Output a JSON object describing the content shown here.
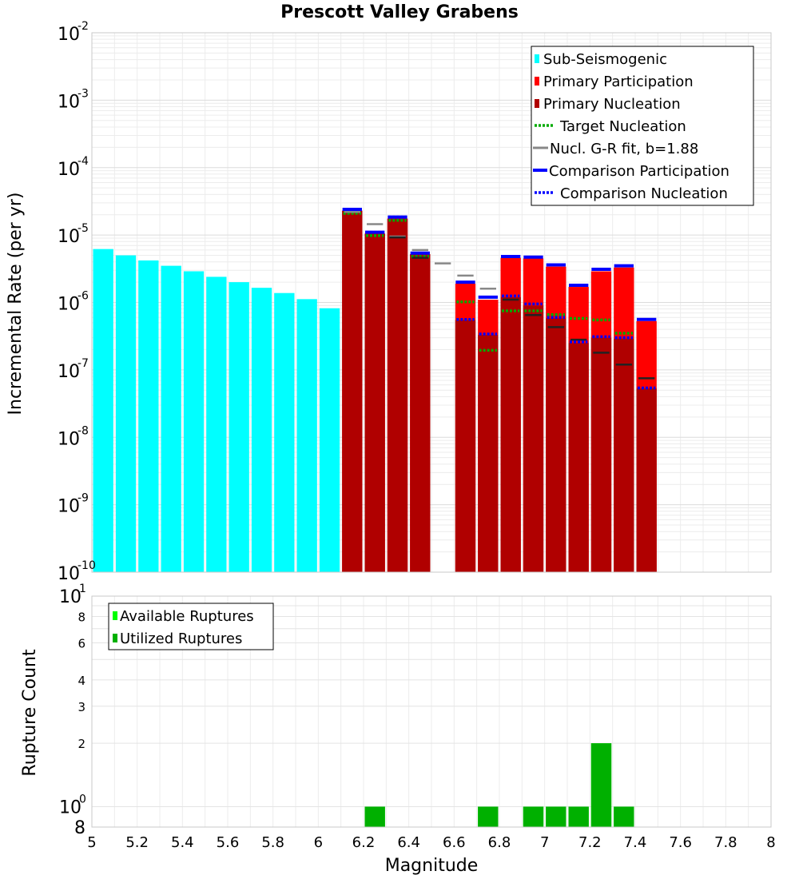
{
  "chart_data": [
    {
      "type": "bar",
      "title": "Prescott Valley Grabens",
      "xlabel": "Magnitude",
      "ylabel": "Incremental Rate (per yr)",
      "yscale": "log",
      "xlim": [
        5,
        8
      ],
      "ylim": [
        1e-10,
        0.01
      ],
      "bin_width": 0.1,
      "y_tick_bases": [
        "10",
        "10",
        "10",
        "10",
        "10",
        "10",
        "10",
        "10",
        "10"
      ],
      "y_tick_exponents": [
        "-2",
        "-3",
        "-4",
        "-5",
        "-6",
        "-7",
        "-8",
        "-9",
        "-10"
      ],
      "series": [
        {
          "name": "Sub-Seismogenic",
          "style": "bar",
          "color": "#00ffff",
          "x": [
            5.05,
            5.15,
            5.25,
            5.35,
            5.45,
            5.55,
            5.65,
            5.75,
            5.85,
            5.95,
            6.05
          ],
          "values": [
            6.2e-06,
            5e-06,
            4.2e-06,
            3.5e-06,
            2.9e-06,
            2.4e-06,
            2e-06,
            1.65e-06,
            1.38e-06,
            1.12e-06,
            8.2e-07
          ]
        },
        {
          "name": "Primary Participation",
          "style": "bar",
          "color": "#ff0000",
          "x": [
            6.15,
            6.25,
            6.35,
            6.45,
            6.65,
            6.75,
            6.85,
            6.95,
            7.05,
            7.15,
            7.25,
            7.35,
            7.45
          ],
          "values": [
            2.3e-05,
            1.05e-05,
            1.75e-05,
            5.2e-06,
            1.9e-06,
            1.1e-06,
            4.6e-06,
            4.5e-06,
            3.4e-06,
            1.7e-06,
            2.9e-06,
            3.3e-06,
            5.3e-07
          ]
        },
        {
          "name": "Primary Nucleation",
          "style": "bar",
          "color": "#b00000",
          "x": [
            6.15,
            6.25,
            6.35,
            6.45,
            6.65,
            6.75,
            6.85,
            6.95,
            7.05,
            7.15,
            7.25,
            7.35,
            7.45
          ],
          "values": [
            2.3e-05,
            1.05e-05,
            1.75e-05,
            5.2e-06,
            5.5e-07,
            3.3e-07,
            1.2e-06,
            9e-07,
            5.8e-07,
            2.5e-07,
            3e-07,
            2.9e-07,
            5.3e-08
          ]
        },
        {
          "name": "Target Nucleation",
          "style": "dotted",
          "color": "#00aa00",
          "x": [
            6.15,
            6.25,
            6.35,
            6.45,
            6.65,
            6.75,
            6.85,
            6.95,
            7.05,
            7.15,
            7.25,
            7.35
          ],
          "values": [
            2.1e-05,
            9.8e-06,
            1.65e-05,
            4.8e-06,
            1.02e-06,
            1.95e-07,
            7.5e-07,
            7.5e-07,
            6.6e-07,
            5.8e-07,
            5.5e-07,
            3.5e-07
          ]
        },
        {
          "name": "Nucl. G-R fit, b=1.88",
          "style": "dash",
          "color": "#888888",
          "x": [
            6.15,
            6.25,
            6.35,
            6.45,
            6.55,
            6.65,
            6.75
          ],
          "values": [
            2.2e-05,
            1.45e-05,
            9.5e-06,
            6e-06,
            3.8e-06,
            2.5e-06,
            1.6e-06
          ]
        },
        {
          "name": "Nucl. G-R fit (tail)",
          "style": "dash",
          "color": "#222222",
          "in_legend": false,
          "x": [
            6.35,
            6.45,
            6.85,
            6.95,
            7.05,
            7.15,
            7.25,
            7.35,
            7.45
          ],
          "values": [
            9.2e-06,
            4.6e-06,
            1.1e-06,
            6.5e-07,
            4.3e-07,
            2.8e-07,
            1.8e-07,
            1.2e-07,
            7.5e-08
          ]
        },
        {
          "name": "Comparison Participation",
          "style": "solid",
          "color": "#0000ff",
          "x": [
            6.15,
            6.25,
            6.35,
            6.45,
            6.65,
            6.75,
            6.85,
            6.95,
            7.05,
            7.15,
            7.25,
            7.35,
            7.45
          ],
          "values": [
            2.4e-05,
            1.1e-05,
            1.85e-05,
            5.4e-06,
            2e-06,
            1.2e-06,
            4.8e-06,
            4.7e-06,
            3.6e-06,
            1.8e-06,
            3.1e-06,
            3.5e-06,
            5.6e-07
          ]
        },
        {
          "name": "Comparison Nucleation",
          "style": "dotted",
          "color": "#0000ff",
          "x": [
            6.15,
            6.25,
            6.35,
            6.45,
            6.65,
            6.75,
            6.85,
            6.95,
            7.05,
            7.15,
            7.25,
            7.35,
            7.45
          ],
          "values": [
            2.4e-05,
            1.1e-05,
            1.85e-05,
            5.4e-06,
            5.6e-07,
            3.4e-07,
            1.25e-06,
            9.5e-07,
            6e-07,
            2.6e-07,
            3.1e-07,
            3e-07,
            5.4e-08
          ]
        }
      ],
      "legend": {
        "placement": "top-right",
        "entries": [
          "Sub-Seismogenic",
          "Primary Participation",
          "Primary Nucleation",
          "Target Nucleation",
          "Nucl. G-R fit, b=1.88",
          "Comparison Participation",
          "Comparison Nucleation"
        ]
      }
    },
    {
      "type": "bar",
      "xlabel": "Magnitude",
      "ylabel": "Rupture Count",
      "yscale": "log",
      "xlim": [
        5,
        8
      ],
      "ylim": [
        0.8,
        10
      ],
      "bin_width": 0.1,
      "x_ticks": [
        "5",
        "5.2",
        "5.4",
        "5.6",
        "5.8",
        "6",
        "6.2",
        "6.4",
        "6.6",
        "6.8",
        "7",
        "7.2",
        "7.4",
        "7.6",
        "7.8",
        "8"
      ],
      "y_minor_ticks": [
        "8",
        "6",
        "4",
        "3",
        "2"
      ],
      "y_major_ticks": [
        {
          "base": "10",
          "exp": "1"
        },
        {
          "base": "10",
          "exp": "0"
        }
      ],
      "y_bottom_label": "8",
      "series": [
        {
          "name": "Available Ruptures",
          "style": "bar",
          "color": "#00ff00",
          "x": [
            6.25,
            6.75,
            6.95,
            7.05,
            7.15,
            7.25,
            7.35
          ],
          "values": [
            1,
            1,
            1,
            1,
            1,
            2,
            1
          ]
        },
        {
          "name": "Utilized Ruptures",
          "style": "bar",
          "color": "#00b000",
          "x": [
            6.25,
            6.75,
            6.95,
            7.05,
            7.15,
            7.25,
            7.35
          ],
          "values": [
            1,
            1,
            1,
            1,
            1,
            2,
            1
          ]
        }
      ],
      "legend": {
        "placement": "top-left",
        "entries": [
          "Available Ruptures",
          "Utilized Ruptures"
        ]
      }
    }
  ]
}
